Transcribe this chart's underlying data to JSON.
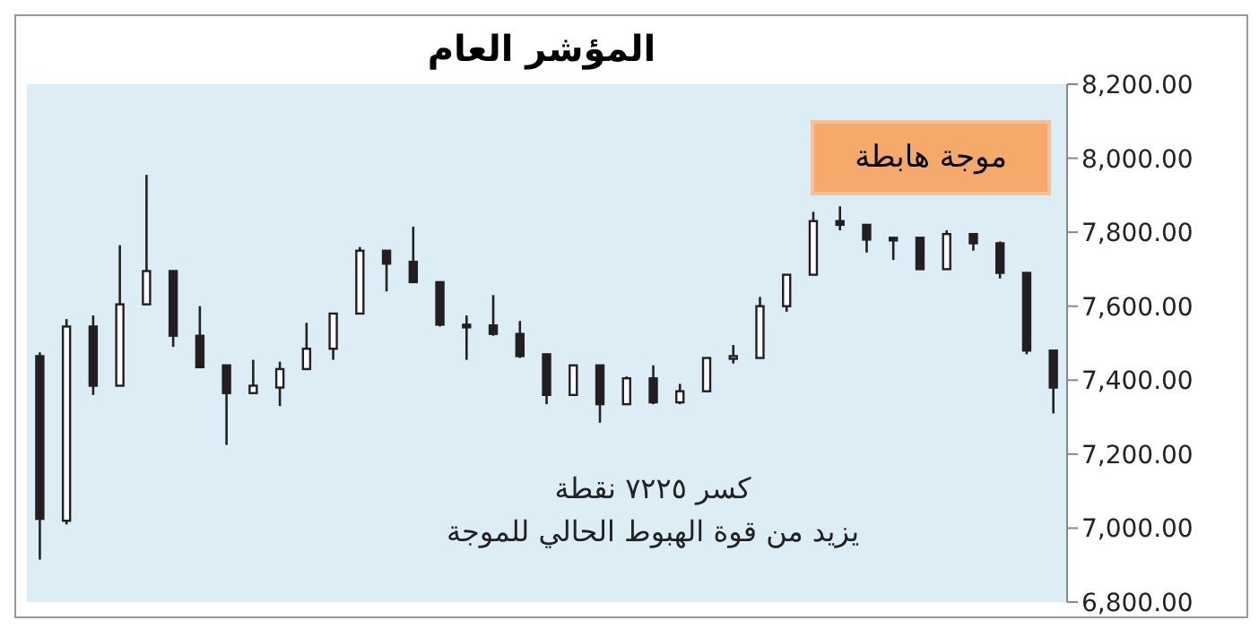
{
  "chart_data": {
    "type": "candlestick",
    "title": "المؤشر العام",
    "categories": [
      null,
      null,
      null,
      null,
      null,
      null,
      null,
      null,
      null,
      null,
      null,
      null,
      null,
      null,
      null,
      null,
      null,
      null,
      null,
      null,
      null,
      null,
      null,
      null,
      null,
      null,
      null,
      null,
      null,
      null,
      null,
      null,
      null,
      null,
      null,
      null,
      null,
      null,
      null
    ],
    "ohlc": [
      [
        7465,
        7475,
        6915,
        7025
      ],
      [
        7020,
        7565,
        7010,
        7545
      ],
      [
        7545,
        7575,
        7360,
        7385
      ],
      [
        7385,
        7765,
        7385,
        7605
      ],
      [
        7605,
        7955,
        7605,
        7695
      ],
      [
        7695,
        7695,
        7490,
        7520
      ],
      [
        7520,
        7600,
        7435,
        7435
      ],
      [
        7440,
        7440,
        7225,
        7365
      ],
      [
        7365,
        7455,
        7365,
        7385
      ],
      [
        7380,
        7450,
        7330,
        7430
      ],
      [
        7430,
        7555,
        7430,
        7485
      ],
      [
        7485,
        7580,
        7455,
        7580
      ],
      [
        7580,
        7760,
        7580,
        7750
      ],
      [
        7750,
        7750,
        7640,
        7715
      ],
      [
        7720,
        7815,
        7665,
        7665
      ],
      [
        7665,
        7665,
        7545,
        7550
      ],
      [
        7550,
        7575,
        7455,
        7548
      ],
      [
        7548,
        7630,
        7520,
        7525
      ],
      [
        7525,
        7560,
        7460,
        7465
      ],
      [
        7470,
        7470,
        7335,
        7360
      ],
      [
        7360,
        7440,
        7360,
        7440
      ],
      [
        7440,
        7440,
        7285,
        7335
      ],
      [
        7335,
        7410,
        7335,
        7405
      ],
      [
        7405,
        7440,
        7335,
        7340
      ],
      [
        7340,
        7390,
        7335,
        7370
      ],
      [
        7370,
        7460,
        7370,
        7460
      ],
      [
        7460,
        7495,
        7445,
        7465
      ],
      [
        7460,
        7625,
        7460,
        7600
      ],
      [
        7600,
        7685,
        7585,
        7685
      ],
      [
        7685,
        7855,
        7685,
        7830
      ],
      [
        7830,
        7870,
        7805,
        7820
      ],
      [
        7820,
        7820,
        7745,
        7780
      ],
      [
        7785,
        7785,
        7725,
        7780
      ],
      [
        7785,
        7785,
        7700,
        7700
      ],
      [
        7700,
        7805,
        7700,
        7795
      ],
      [
        7795,
        7795,
        7750,
        7770
      ],
      [
        7770,
        7775,
        7675,
        7690
      ],
      [
        7690,
        7690,
        7470,
        7480
      ],
      [
        7480,
        7480,
        7310,
        7380
      ]
    ],
    "ylim": [
      6800,
      8200
    ],
    "yticks": [
      {
        "value": 6800,
        "label": "6,800.00"
      },
      {
        "value": 7000,
        "label": "7,000.00"
      },
      {
        "value": 7200,
        "label": "7,200.00"
      },
      {
        "value": 7400,
        "label": "7,400.00"
      },
      {
        "value": 7600,
        "label": "7,600.00"
      },
      {
        "value": 7800,
        "label": "7,800.00"
      },
      {
        "value": 8000,
        "label": "8,000.00"
      },
      {
        "value": 8200,
        "label": "8,200.00"
      }
    ],
    "tick_labels": "y",
    "annotations": [
      "موجة هابطة",
      "كسر ٧٢٢٥ نقطة",
      "يزيد من قوة الهبوط الحالي للموجة"
    ]
  }
}
